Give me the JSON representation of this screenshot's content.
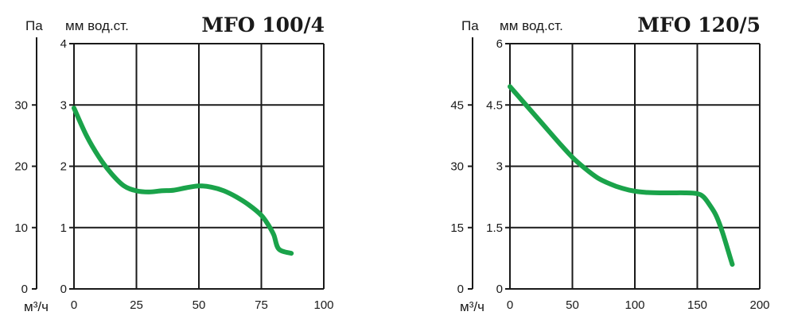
{
  "colors": {
    "curve": "#1aa34a",
    "ink": "#1a1a1a",
    "background": "#ffffff"
  },
  "chart_data": [
    {
      "type": "line",
      "title": "MFO 100/4",
      "ylabel_left": "Па",
      "ylabel_right": "мм вод.ст.",
      "xlabel": "м³/ч",
      "xlim": [
        0,
        100
      ],
      "ylim": [
        0,
        4
      ],
      "ylim_pa": [
        0,
        40
      ],
      "x_ticks": [
        "0",
        "25",
        "50",
        "75",
        "100"
      ],
      "y_ticks": [
        "0",
        "1",
        "2",
        "3",
        "4"
      ],
      "pa_ticks": [
        "0",
        "10",
        "20",
        "30"
      ],
      "grid": true,
      "series": [
        {
          "x": [
            0,
            5,
            10,
            15,
            20,
            25,
            30,
            35,
            40,
            45,
            50,
            55,
            60,
            65,
            70,
            75,
            78,
            80,
            82,
            87
          ],
          "y": [
            2.95,
            2.5,
            2.15,
            1.88,
            1.68,
            1.6,
            1.58,
            1.6,
            1.61,
            1.65,
            1.68,
            1.66,
            1.6,
            1.5,
            1.37,
            1.2,
            1.03,
            0.88,
            0.65,
            0.58
          ]
        }
      ]
    },
    {
      "type": "line",
      "title": "MFO 120/5",
      "ylabel_left": "Па",
      "ylabel_right": "мм вод.ст.",
      "xlabel": "м³/ч",
      "xlim": [
        0,
        200
      ],
      "ylim": [
        0,
        6
      ],
      "ylim_pa": [
        0,
        60
      ],
      "x_ticks": [
        "0",
        "50",
        "100",
        "150",
        "200"
      ],
      "y_ticks": [
        "0",
        "1.5",
        "3",
        "4.5",
        "6"
      ],
      "pa_ticks": [
        "0",
        "15",
        "30",
        "45"
      ],
      "grid": true,
      "series": [
        {
          "x": [
            0,
            10,
            20,
            30,
            40,
            50,
            60,
            70,
            80,
            90,
            100,
            110,
            120,
            130,
            140,
            150,
            155,
            160,
            165,
            170,
            175,
            178
          ],
          "y": [
            4.95,
            4.6,
            4.25,
            3.9,
            3.55,
            3.22,
            2.95,
            2.72,
            2.57,
            2.46,
            2.39,
            2.36,
            2.35,
            2.35,
            2.35,
            2.33,
            2.25,
            2.05,
            1.8,
            1.4,
            0.9,
            0.6
          ]
        }
      ]
    }
  ]
}
